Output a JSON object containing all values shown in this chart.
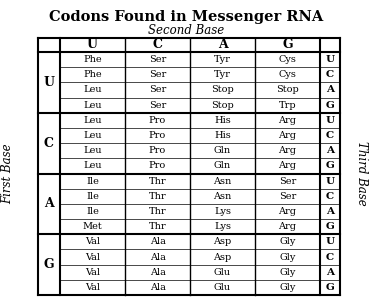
{
  "title": "Codons Found in Messenger RNA",
  "second_base_label": "Second Base",
  "first_base_label": "First Base",
  "third_base_label": "Third Base",
  "second_bases": [
    "U",
    "C",
    "A",
    "G"
  ],
  "first_bases": [
    "U",
    "C",
    "A",
    "G"
  ],
  "third_bases": [
    "U",
    "C",
    "A",
    "G"
  ],
  "table": {
    "U": {
      "U": [
        "Phe",
        "Phe",
        "Leu",
        "Leu"
      ],
      "C": [
        "Ser",
        "Ser",
        "Ser",
        "Ser"
      ],
      "A": [
        "Tyr",
        "Tyr",
        "Stop",
        "Stop"
      ],
      "G": [
        "Cys",
        "Cys",
        "Stop",
        "Trp"
      ]
    },
    "C": {
      "U": [
        "Leu",
        "Leu",
        "Leu",
        "Leu"
      ],
      "C": [
        "Pro",
        "Pro",
        "Pro",
        "Pro"
      ],
      "A": [
        "His",
        "His",
        "Gln",
        "Gln"
      ],
      "G": [
        "Arg",
        "Arg",
        "Arg",
        "Arg"
      ]
    },
    "A": {
      "U": [
        "Ile",
        "Ile",
        "Ile",
        "Met"
      ],
      "C": [
        "Thr",
        "Thr",
        "Thr",
        "Thr"
      ],
      "A": [
        "Asn",
        "Asn",
        "Lys",
        "Lys"
      ],
      "G": [
        "Ser",
        "Ser",
        "Arg",
        "Arg"
      ]
    },
    "G": {
      "U": [
        "Val",
        "Val",
        "Val",
        "Val"
      ],
      "C": [
        "Ala",
        "Ala",
        "Ala",
        "Ala"
      ],
      "A": [
        "Asp",
        "Asp",
        "Glu",
        "Glu"
      ],
      "G": [
        "Gly",
        "Gly",
        "Gly",
        "Gly"
      ]
    }
  },
  "bg_color": "#ffffff",
  "text_color": "#000000",
  "title_fontsize": 10.5,
  "label_fontsize": 8.5,
  "header_fontsize": 9,
  "cell_fontsize": 7,
  "fb_fontsize": 9,
  "tb_fontsize": 7.5
}
